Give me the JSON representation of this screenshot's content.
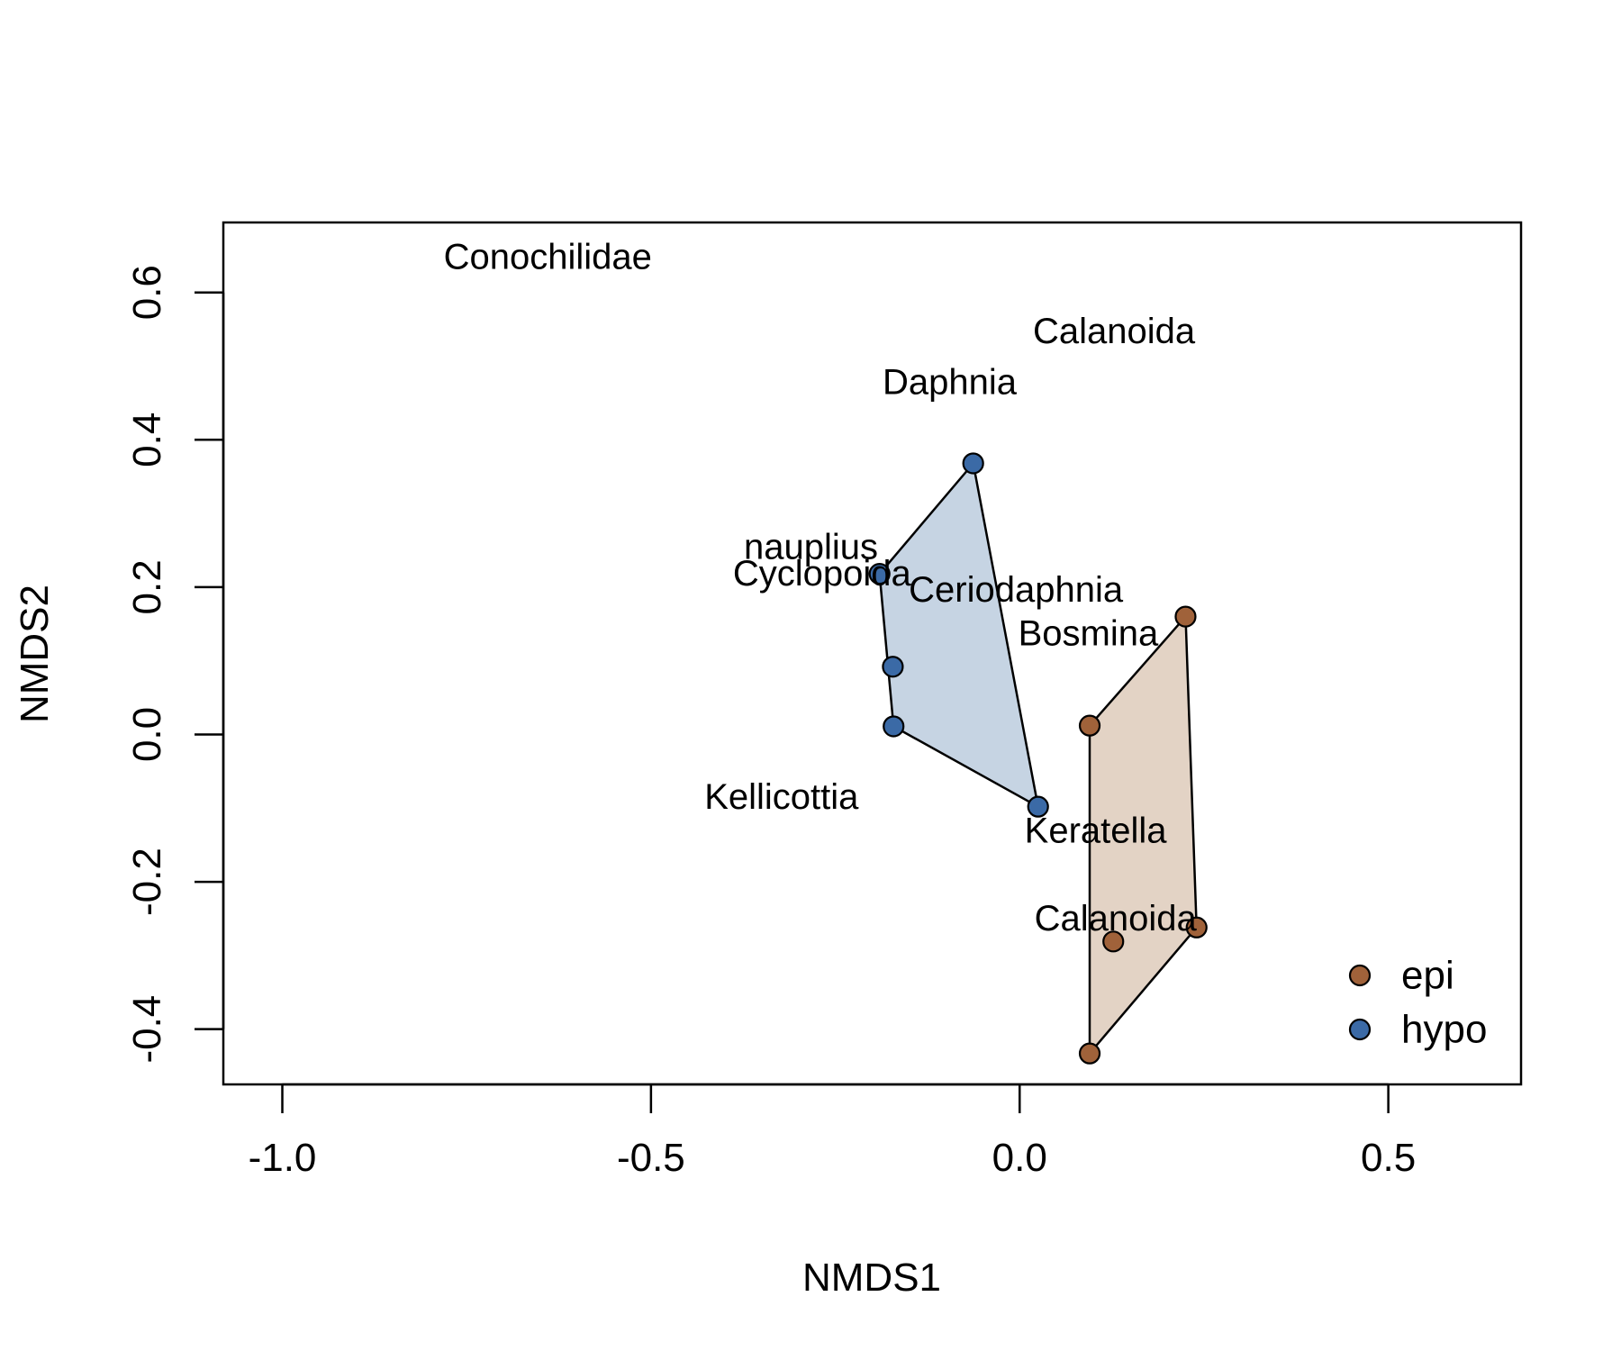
{
  "chart_data": {
    "type": "scatter",
    "title": "",
    "xlabel": "NMDS1",
    "ylabel": "NMDS2",
    "xlim": [
      -1.08,
      0.68
    ],
    "ylim": [
      -0.475,
      0.695
    ],
    "xticks": [
      -1.0,
      -0.5,
      0.0,
      0.5
    ],
    "xtick_labels": [
      "-1.0",
      "-0.5",
      "0.0",
      "0.5"
    ],
    "yticks": [
      -0.4,
      -0.2,
      0.0,
      0.2,
      0.4,
      0.6
    ],
    "ytick_labels": [
      "-0.4",
      "-0.2",
      "0.0",
      "0.2",
      "0.4",
      "0.6"
    ],
    "grid": false,
    "legend_position": "bottom-right",
    "series": [
      {
        "name": "epi",
        "color": "#a0623a",
        "fill": "#e3d3c5",
        "points": [
          {
            "x": 0.225,
            "y": 0.16
          },
          {
            "x": 0.095,
            "y": 0.012
          },
          {
            "x": 0.24,
            "y": -0.262
          },
          {
            "x": 0.127,
            "y": -0.281
          },
          {
            "x": 0.095,
            "y": -0.433
          }
        ],
        "hull": [
          {
            "x": 0.225,
            "y": 0.16
          },
          {
            "x": 0.24,
            "y": -0.262
          },
          {
            "x": 0.095,
            "y": -0.433
          },
          {
            "x": 0.095,
            "y": 0.012
          }
        ]
      },
      {
        "name": "hypo",
        "color": "#3b6aa6",
        "fill": "#c6d4e3",
        "points": [
          {
            "x": -0.063,
            "y": 0.368
          },
          {
            "x": -0.19,
            "y": 0.218
          },
          {
            "x": -0.172,
            "y": 0.092
          },
          {
            "x": -0.171,
            "y": 0.011
          },
          {
            "x": 0.025,
            "y": -0.098
          }
        ],
        "hull": [
          {
            "x": -0.063,
            "y": 0.368
          },
          {
            "x": 0.025,
            "y": -0.098
          },
          {
            "x": -0.171,
            "y": 0.011
          },
          {
            "x": -0.19,
            "y": 0.218
          }
        ]
      }
    ],
    "species": [
      {
        "label": "Conochilidae",
        "x": -0.64,
        "y": 0.648
      },
      {
        "label": "Calanoida",
        "x": 0.128,
        "y": 0.547
      },
      {
        "label": "Daphnia",
        "x": -0.095,
        "y": 0.478
      },
      {
        "label": "nauplius",
        "x": -0.283,
        "y": 0.254
      },
      {
        "label": "Cyclopoida",
        "x": -0.268,
        "y": 0.218
      },
      {
        "label": "Ceriodaphnia",
        "x": -0.005,
        "y": 0.196
      },
      {
        "label": "Bosmina",
        "x": 0.093,
        "y": 0.137
      },
      {
        "label": "Kellicottia",
        "x": -0.323,
        "y": -0.085
      },
      {
        "label": "Keratella",
        "x": 0.103,
        "y": -0.131
      },
      {
        "label": "Calanoida",
        "x": 0.13,
        "y": -0.25
      }
    ]
  }
}
